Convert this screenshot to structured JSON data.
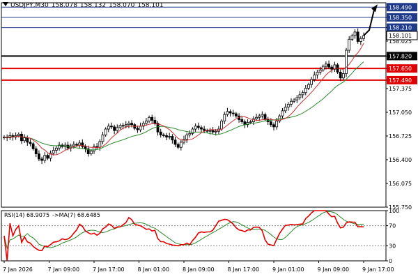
{
  "header": {
    "symbol": "USDJPY,M30",
    "open": "158.078",
    "high": "158.132",
    "low": "158.070",
    "close": "158.101"
  },
  "rsi_header": {
    "label": "RSI(14) 68.9075",
    "ma_label": "->MA(7) 68.6485"
  },
  "chart_data": [
    {
      "type": "candlestick",
      "symbol": "USDJPY",
      "timeframe": "M30",
      "y_ticks": [
        "158.490",
        "158.350",
        "158.210",
        "158.025",
        "157.820",
        "157.650",
        "157.490",
        "157.375",
        "157.050",
        "156.725",
        "156.400",
        "156.075",
        "155.750"
      ],
      "x_ticks": [
        "7 Jan 2026",
        "7 Jan 09:00",
        "7 Jan 17:00",
        "8 Jan 01:00",
        "8 Jan 09:00",
        "8 Jan 17:00",
        "9 Jan 01:00",
        "9 Jan 09:00",
        "9 Jan 17:00"
      ],
      "ylim": [
        155.75,
        158.55
      ],
      "current_price": "158.101",
      "levels": [
        {
          "value": 158.49,
          "label": "158.490",
          "color": "#1f3a8a"
        },
        {
          "value": 158.35,
          "label": "158.350",
          "color": "#1f3a8a"
        },
        {
          "value": 158.21,
          "label": "158.210",
          "color": "#1f3a8a"
        },
        {
          "value": 157.82,
          "label": "157.820",
          "color": "#000000"
        },
        {
          "value": 157.65,
          "label": "157.650",
          "color": "#e00000"
        },
        {
          "value": 157.49,
          "label": "157.490",
          "color": "#e00000"
        }
      ],
      "series": [
        {
          "values": [
            156.71,
            156.7,
            156.73,
            156.71,
            156.73,
            156.75,
            156.66,
            156.7,
            156.64,
            156.62,
            156.55,
            156.48,
            156.41,
            156.39,
            156.46,
            156.42,
            156.49,
            156.53,
            156.56,
            156.6,
            156.58,
            156.6,
            156.56,
            156.59,
            156.61,
            156.6,
            156.63,
            156.58,
            156.55,
            156.48,
            156.52,
            156.58,
            156.57,
            156.65,
            156.74,
            156.82,
            156.86,
            156.85,
            156.8,
            156.84,
            156.87,
            156.86,
            156.88,
            156.9,
            156.88,
            156.83,
            156.81,
            156.86,
            156.9,
            156.93,
            156.98,
            156.94,
            156.9,
            156.78,
            156.74,
            156.73,
            156.71,
            156.72,
            156.67,
            156.61,
            156.57,
            156.64,
            156.68,
            156.74,
            156.76,
            156.82,
            156.86,
            156.84,
            156.82,
            156.8,
            156.79,
            156.8,
            156.78,
            156.79,
            156.82,
            156.93,
            157.02,
            157.06,
            157.04,
            157.03,
            157.0,
            156.95,
            156.92,
            156.88,
            156.91,
            156.92,
            156.96,
            156.98,
            157.0,
            157.02,
            156.95,
            156.92,
            156.88,
            156.85,
            156.93,
            157.0,
            157.07,
            157.12,
            157.16,
            157.2,
            157.22,
            157.25,
            157.29,
            157.32,
            157.38,
            157.43,
            157.5,
            157.56,
            157.6,
            157.63,
            157.68,
            157.71,
            157.67,
            157.64,
            157.7,
            157.6,
            157.52,
            157.58,
            157.9,
            158.05,
            158.1,
            158.15,
            158.02,
            158.06,
            158.1
          ]
        },
        {
          "name": "MA",
          "color": "#2a8a2a"
        },
        {
          "name": "MA",
          "color": "#c83232"
        }
      ]
    },
    {
      "type": "line",
      "title": "RSI(14) 68.9075 ->MA(7) 68.6485",
      "y_ticks": [
        "100",
        "70",
        "30",
        "0"
      ],
      "ylim": [
        0,
        100
      ],
      "levels": [
        70,
        30
      ],
      "series": [
        {
          "name": "RSI(14)",
          "color": "#e00000"
        },
        {
          "name": "MA(7)",
          "color": "#2a8a2a"
        }
      ]
    }
  ]
}
